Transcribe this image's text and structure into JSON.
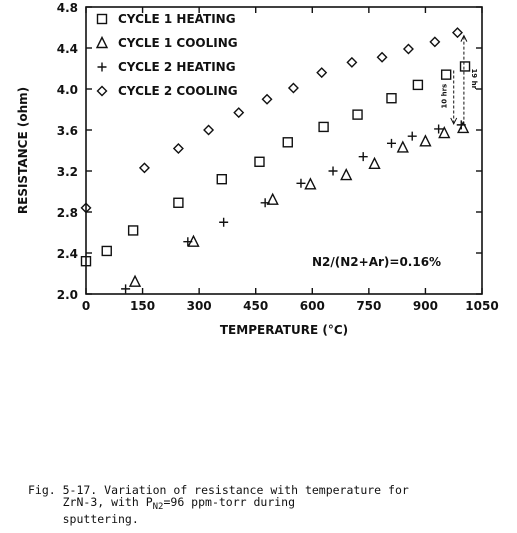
{
  "chart_data": {
    "type": "scatter",
    "xlabel": "TEMPERATURE (°C)",
    "ylabel": "RESISTANCE (ohm)",
    "xlim": [
      0,
      1050
    ],
    "ylim": [
      2.0,
      4.8
    ],
    "xticks": [
      0,
      150,
      300,
      450,
      600,
      750,
      900,
      1050
    ],
    "yticks": [
      2.0,
      2.4,
      2.8,
      3.2,
      3.6,
      4.0,
      4.4,
      4.8
    ],
    "xtick_labels": [
      "0",
      "150",
      "300",
      "450",
      "600",
      "750",
      "900",
      "1050"
    ],
    "ytick_labels": [
      "2.0",
      "2.4",
      "2.8",
      "3.2",
      "3.6",
      "4.0",
      "4.4",
      "4.8"
    ],
    "legend_position": "top-left",
    "grid": false,
    "series": [
      {
        "name": "CYCLE 1 HEATING",
        "marker": "square",
        "x": [
          0,
          55,
          125,
          245,
          360,
          460,
          535,
          630,
          720,
          810,
          880,
          955,
          1005
        ],
        "y": [
          2.32,
          2.42,
          2.62,
          2.89,
          3.12,
          3.29,
          3.48,
          3.63,
          3.75,
          3.91,
          4.04,
          4.14,
          4.22
        ]
      },
      {
        "name": "CYCLE 1 COOLING",
        "marker": "triangle",
        "x": [
          130,
          285,
          495,
          595,
          690,
          765,
          840,
          900,
          950,
          1000
        ],
        "y": [
          2.12,
          2.51,
          2.92,
          3.07,
          3.16,
          3.27,
          3.43,
          3.49,
          3.57,
          3.62
        ]
      },
      {
        "name": "CYCLE 2 HEATING",
        "marker": "plus",
        "x": [
          105,
          270,
          365,
          475,
          570,
          655,
          735,
          810,
          865,
          935,
          995
        ],
        "y": [
          2.05,
          2.51,
          2.7,
          2.89,
          3.08,
          3.2,
          3.34,
          3.47,
          3.54,
          3.61,
          3.65
        ]
      },
      {
        "name": "CYCLE 2 COOLING",
        "marker": "diamond",
        "x": [
          0,
          155,
          245,
          325,
          405,
          480,
          550,
          625,
          705,
          785,
          855,
          925,
          985
        ],
        "y": [
          2.84,
          3.23,
          3.42,
          3.6,
          3.77,
          3.9,
          4.01,
          4.16,
          4.26,
          4.31,
          4.39,
          4.46,
          4.55
        ]
      }
    ],
    "annotations": {
      "ratio": "N2/(N2+Ar)=0.16%",
      "arrow_long_label": "19 hr",
      "arrow_short_label": "10 hrs"
    }
  },
  "caption": {
    "line1": "Fig. 5-17. Variation of resistance with temperature for",
    "line2_prefix": "ZrN-3, with P",
    "line2_sub": "N2",
    "line2_suffix": "=96 ppm-torr during",
    "line3": "sputtering."
  }
}
